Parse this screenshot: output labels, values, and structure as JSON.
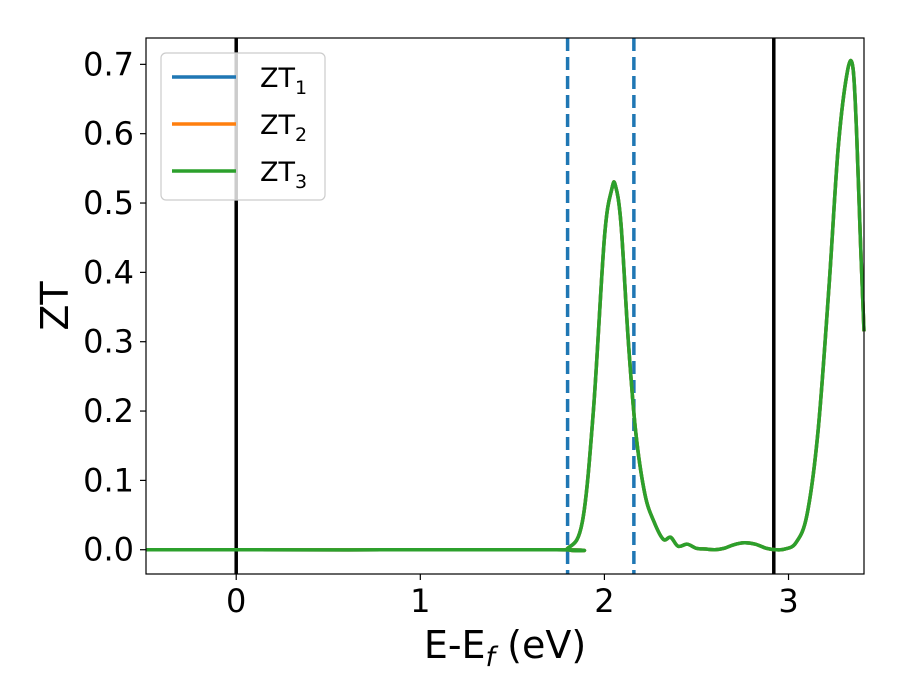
{
  "chart_data": {
    "type": "line",
    "xlabel": "E-E",
    "xlabel_sub": "f",
    "xlabel_unit": " (eV)",
    "ylabel": "ZT",
    "xlim": [
      -0.49,
      3.41
    ],
    "ylim": [
      -0.035,
      0.738
    ],
    "xticks": [
      0,
      1,
      2,
      3
    ],
    "xtick_labels": [
      "0",
      "1",
      "2",
      "3"
    ],
    "yticks": [
      0.0,
      0.1,
      0.2,
      0.3,
      0.4,
      0.5,
      0.6,
      0.7
    ],
    "ytick_labels": [
      "0.0",
      "0.1",
      "0.2",
      "0.3",
      "0.4",
      "0.5",
      "0.6",
      "0.7"
    ],
    "grid": false,
    "legend_position": "upper-left",
    "vertical_lines": [
      {
        "x": 0.0,
        "style": "solid",
        "color": "#000000"
      },
      {
        "x": 2.92,
        "style": "solid",
        "color": "#000000"
      },
      {
        "x": 1.8,
        "style": "dashed",
        "color": "#1f77b4"
      },
      {
        "x": 2.16,
        "style": "dashed",
        "color": "#1f77b4"
      }
    ],
    "series": [
      {
        "name": "ZT",
        "sub": "1",
        "color": "#1f77b4",
        "x": [
          -0.49,
          1.7,
          1.8,
          1.88,
          1.94,
          2.0,
          2.04,
          2.06,
          2.09,
          2.13,
          2.17,
          2.22,
          2.27,
          2.32,
          2.36,
          2.4,
          2.45,
          2.5,
          2.55,
          2.6,
          2.65,
          2.7,
          2.76,
          2.82,
          2.88,
          2.93,
          2.98,
          3.04,
          3.1,
          3.16,
          3.22,
          3.27,
          3.32,
          3.35,
          3.37,
          3.39,
          3.41
        ],
        "y": [
          0.0,
          0.0,
          0.002,
          0.04,
          0.2,
          0.45,
          0.52,
          0.525,
          0.47,
          0.3,
          0.17,
          0.08,
          0.04,
          0.015,
          0.018,
          0.005,
          0.008,
          0.002,
          0.001,
          0.0,
          0.002,
          0.007,
          0.01,
          0.008,
          0.002,
          0.0,
          0.001,
          0.01,
          0.05,
          0.17,
          0.38,
          0.58,
          0.69,
          0.695,
          0.6,
          0.45,
          0.315
        ]
      },
      {
        "name": "ZT",
        "sub": "2",
        "color": "#ff7f0e",
        "x": [
          -0.49,
          1.7,
          1.8,
          1.88,
          1.94,
          2.0,
          2.04,
          2.06,
          2.09,
          2.13,
          2.17,
          2.22,
          2.27,
          2.32,
          2.36,
          2.4,
          2.45,
          2.5,
          2.55,
          2.6,
          2.65,
          2.7,
          2.76,
          2.82,
          2.88,
          2.93,
          2.98,
          3.04,
          3.1,
          3.16,
          3.22,
          3.27,
          3.32,
          3.35,
          3.37,
          3.39,
          3.41
        ],
        "y": [
          0.0,
          0.0,
          0.002,
          0.04,
          0.2,
          0.45,
          0.52,
          0.525,
          0.47,
          0.3,
          0.17,
          0.08,
          0.04,
          0.015,
          0.018,
          0.005,
          0.008,
          0.002,
          0.001,
          0.0,
          0.002,
          0.007,
          0.01,
          0.008,
          0.002,
          0.0,
          0.001,
          0.01,
          0.05,
          0.17,
          0.38,
          0.58,
          0.69,
          0.695,
          0.6,
          0.45,
          0.315
        ]
      },
      {
        "name": "ZT",
        "sub": "3",
        "color": "#2ca02c",
        "x": [
          -0.49,
          1.7,
          1.8,
          1.88,
          1.94,
          2.0,
          2.04,
          2.06,
          2.09,
          2.13,
          2.17,
          2.22,
          2.27,
          2.32,
          2.36,
          2.4,
          2.45,
          2.5,
          2.55,
          2.6,
          2.65,
          2.7,
          2.76,
          2.82,
          2.88,
          2.93,
          2.98,
          3.04,
          3.1,
          3.16,
          3.22,
          3.27,
          3.32,
          3.35,
          3.37,
          3.39,
          3.41
        ],
        "y": [
          0.0,
          0.0,
          0.002,
          0.04,
          0.2,
          0.45,
          0.52,
          0.525,
          0.47,
          0.3,
          0.17,
          0.08,
          0.04,
          0.015,
          0.018,
          0.005,
          0.008,
          0.002,
          0.001,
          0.0,
          0.002,
          0.007,
          0.01,
          0.008,
          0.002,
          0.0,
          0.001,
          0.01,
          0.05,
          0.17,
          0.38,
          0.58,
          0.69,
          0.695,
          0.6,
          0.45,
          0.315
        ]
      }
    ]
  }
}
